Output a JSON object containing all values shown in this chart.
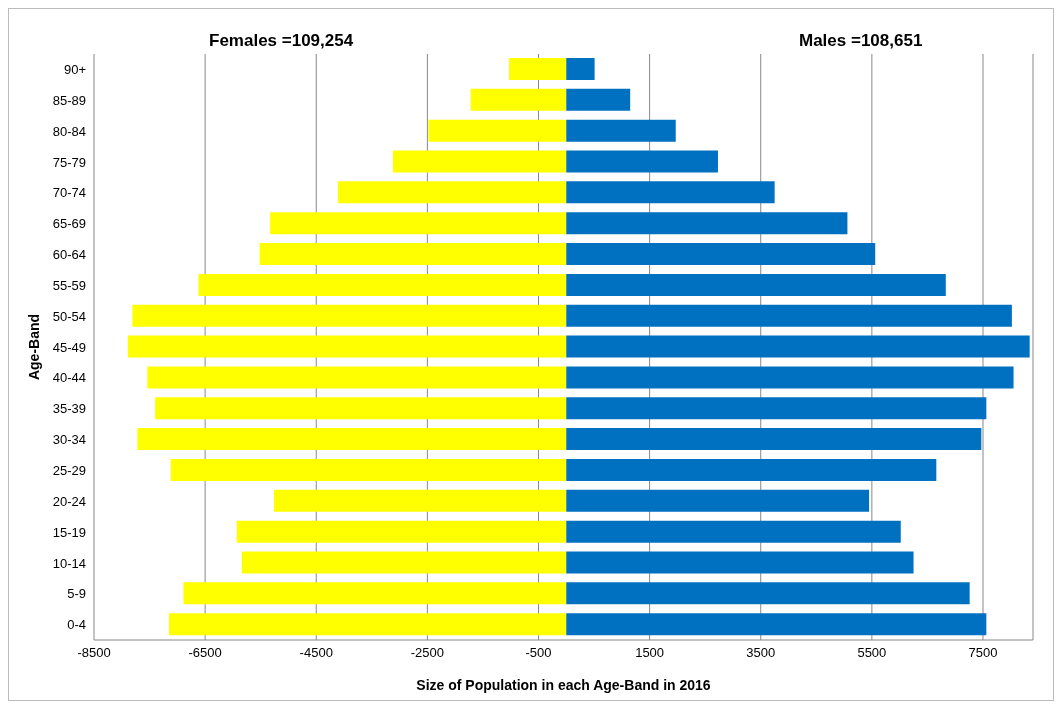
{
  "chart_data": {
    "type": "bar",
    "orientation": "horizontal",
    "stacked": true,
    "categories": [
      "90+",
      "85-89",
      "80-84",
      "75-79",
      "70-74",
      "65-69",
      "60-64",
      "55-59",
      "50-54",
      "45-49",
      "40-44",
      "35-39",
      "30-34",
      "25-29",
      "20-24",
      "15-19",
      "10-14",
      "5-9",
      "0-4"
    ],
    "series": [
      {
        "color": "#ffff00",
        "values": [
          -1030,
          -1720,
          -2480,
          -3120,
          -4110,
          -5330,
          -5520,
          -6620,
          -7810,
          -7890,
          -7540,
          -7400,
          -7720,
          -7120,
          -5260,
          -5930,
          -5840,
          -6890,
          -7150
        ]
      },
      {
        "color": "#0070c0",
        "values": [
          510,
          1150,
          1970,
          2730,
          3750,
          5060,
          5560,
          6830,
          8020,
          8340,
          8050,
          7560,
          7470,
          6660,
          5450,
          6020,
          6250,
          7260,
          7560
        ]
      }
    ],
    "xlim": [
      -8500,
      8400
    ],
    "xticks": [
      -8500,
      -6500,
      -4500,
      -2500,
      -500,
      1500,
      3500,
      5500,
      7500
    ],
    "xlabel": "Size of Population in each Age-Band in 2016",
    "ylabel": "Age-Band",
    "annotations": [
      "Females =109,254",
      "Males =108,651"
    ],
    "grid": "x",
    "legend": false
  }
}
